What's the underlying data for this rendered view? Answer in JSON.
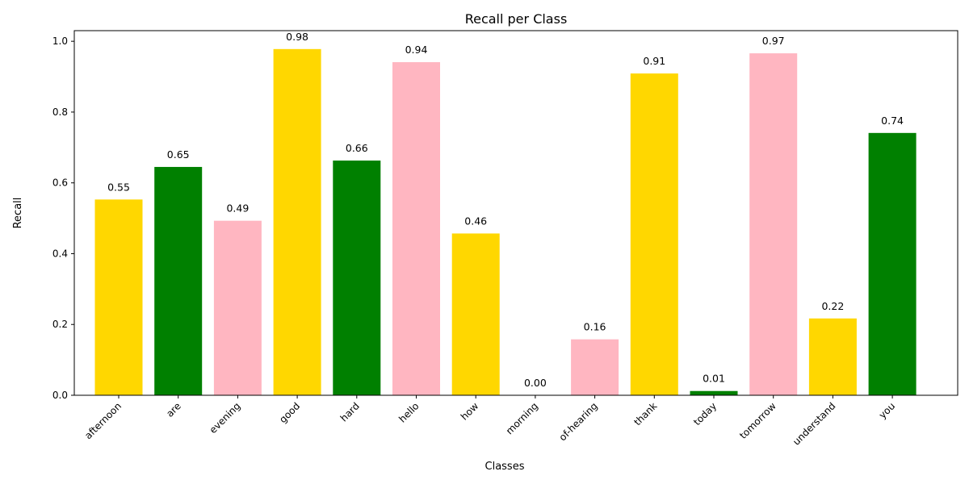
{
  "chart_data": {
    "type": "bar",
    "title": "Recall per Class",
    "xlabel": "Classes",
    "ylabel": "Recall",
    "ylim": [
      0,
      1.03
    ],
    "yticks": [
      0.0,
      0.2,
      0.4,
      0.6,
      0.8,
      1.0
    ],
    "ytick_labels": [
      "0.0",
      "0.2",
      "0.4",
      "0.6",
      "0.8",
      "1.0"
    ],
    "categories": [
      "afternoon",
      "are",
      "evening",
      "good",
      "hard",
      "hello",
      "how",
      "morning",
      "of-hearing",
      "thank",
      "today",
      "tomorrow",
      "understand",
      "you"
    ],
    "values": [
      0.553,
      0.645,
      0.493,
      0.978,
      0.663,
      0.941,
      0.457,
      0.0,
      0.158,
      0.909,
      0.012,
      0.966,
      0.217,
      0.741
    ],
    "value_labels": [
      "0.55",
      "0.65",
      "0.49",
      "0.98",
      "0.66",
      "0.94",
      "0.46",
      "0.00",
      "0.16",
      "0.91",
      "0.01",
      "0.97",
      "0.22",
      "0.74"
    ],
    "colors": [
      "#FFD700",
      "#008000",
      "#FFB6C1",
      "#FFD700",
      "#008000",
      "#FFB6C1",
      "#FFD700",
      "#FFB6C1",
      "#FFB6C1",
      "#FFD700",
      "#008000",
      "#FFB6C1",
      "#FFD700",
      "#008000"
    ],
    "grid": false,
    "legend": "none"
  }
}
